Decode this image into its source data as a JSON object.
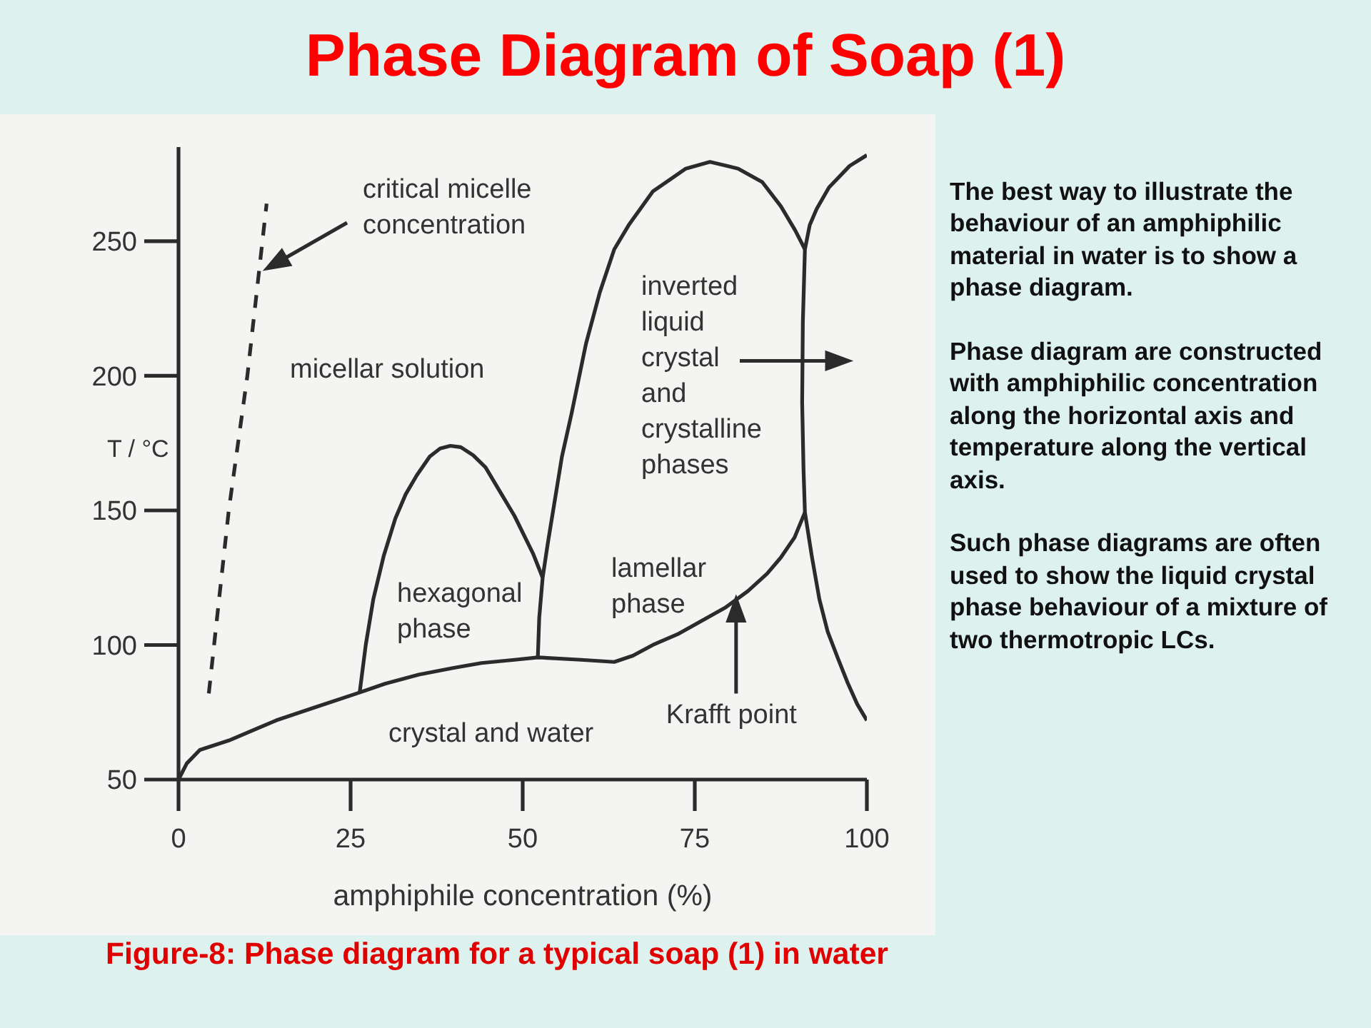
{
  "chart_data": {
    "type": "line",
    "title": "Phase Diagram of Soap (1)",
    "xlabel": "amphiphile concentration (%)",
    "ylabel": "T / °C",
    "xlim": [
      0,
      100
    ],
    "ylim": [
      50,
      285
    ],
    "xticks": [
      0,
      25,
      50,
      75,
      100
    ],
    "yticks": [
      50,
      100,
      150,
      200,
      250
    ],
    "marker": "none",
    "line_style": "solid",
    "series": [
      {
        "color": "#2b2b2b",
        "line_style": "dashed",
        "x": [
          4.4,
          7.3,
          10,
          12.8
        ],
        "values": [
          82,
          150,
          200,
          264
        ]
      },
      {
        "color": "#2b2b2b",
        "x": [
          0,
          1.2,
          3.1,
          7.3,
          14.2,
          20,
          25.9,
          30,
          34.9,
          40,
          44,
          48.8,
          52.2,
          58.5,
          63.3,
          66,
          68.9,
          72.5,
          75.8,
          79.5,
          82.7,
          85.5,
          87.5,
          89.5,
          91
        ],
        "values": [
          50,
          56,
          61,
          64.5,
          72,
          77,
          82,
          85.6,
          89,
          91.5,
          93.3,
          94.5,
          95.4,
          94.5,
          93.7,
          96,
          100,
          104,
          108.7,
          114,
          120,
          126.5,
          132.5,
          140,
          149.3
        ]
      },
      {
        "color": "#2b2b2b",
        "x": [
          26.3,
          27.2,
          28.3,
          29.8,
          31.5,
          33,
          34.6,
          36.5,
          38,
          39.5,
          41,
          42.8,
          44.6,
          46.7,
          48.8,
          51.5,
          52.9
        ],
        "values": [
          82,
          100,
          117,
          133,
          147,
          156,
          163,
          170,
          173,
          174,
          173.5,
          170.5,
          166,
          157,
          148,
          134,
          125
        ]
      },
      {
        "color": "#2b2b2b",
        "x": [
          52.2,
          52.4,
          52.9,
          53.6,
          54.3,
          55,
          55.7,
          57.1,
          59.2,
          61.2,
          63.3,
          65.4,
          68.9,
          73.7,
          77.2,
          81.3,
          84.8,
          87.5,
          89.6,
          91
        ],
        "values": [
          95.4,
          110,
          125,
          137,
          148,
          159,
          170,
          186,
          212,
          231,
          247,
          256,
          268.5,
          277,
          279.5,
          277,
          272,
          263,
          254,
          247
        ]
      },
      {
        "color": "#2b2b2b",
        "x": [
          100,
          97.5,
          94.5,
          92.7,
          91.7,
          91,
          90.7,
          90.6,
          90.8,
          91,
          92,
          93.1,
          94.3,
          95.8,
          97.2,
          98.6,
          100
        ],
        "values": [
          282,
          278,
          270,
          262,
          256,
          247,
          220,
          190,
          165,
          149.3,
          133,
          117,
          105,
          95,
          86,
          78,
          72
        ]
      }
    ],
    "annotations": [
      "critical micelle concentration",
      "micellar solution",
      "inverted liquid crystal and crystalline phases",
      "hexagonal phase",
      "lamellar phase",
      {
        "text": "Krafft point",
        "x": 81,
        "y": 117
      },
      "crystal and water",
      "The best way to illustrate the behaviour of an amphiphilic material in water is to show a phase diagram.",
      "Phase diagram are constructed with amphiphilic concentration along the horizontal axis and temperature along the vertical axis.",
      "Such phase diagrams are often used to show the liquid crystal phase behaviour of a mixture of two thermotropic LCs.",
      "Figure-8: Phase diagram for a typical soap (1) in water"
    ]
  }
}
